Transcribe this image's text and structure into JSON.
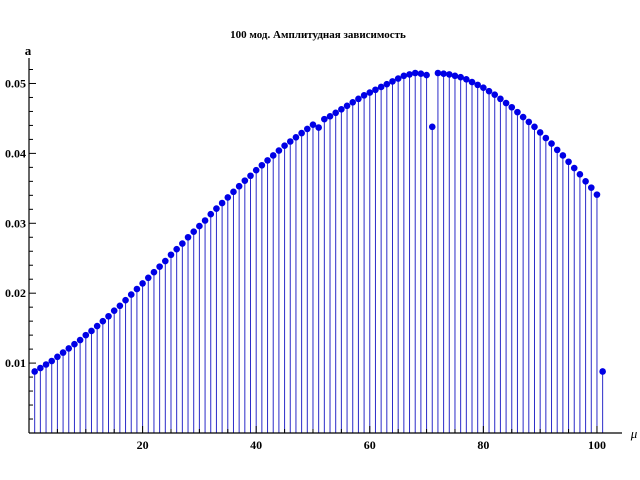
{
  "chart_data": {
    "type": "scatter",
    "style": "stem",
    "title": "100 мод. Амплитудная зависимость",
    "xlabel": "μ",
    "ylabel": "a",
    "xlim": [
      0,
      103
    ],
    "ylim": [
      0,
      0.0525
    ],
    "xticks": [
      20,
      40,
      60,
      80,
      100
    ],
    "xtick_labels": [
      "20",
      "40",
      "60",
      "80",
      "100"
    ],
    "yticks": [
      0.01,
      0.02,
      0.03,
      0.04,
      0.05
    ],
    "ytick_labels": [
      "0.01",
      "0.02",
      "0.03",
      "0.04",
      "0.05"
    ],
    "grid": false,
    "legend": "none",
    "colors": {
      "stem": "#2b2bc8",
      "point": "#0000e6",
      "axis": "#000000"
    },
    "series": [
      {
        "x": [
          1,
          2,
          3,
          4,
          5,
          6,
          7,
          8,
          9,
          10,
          11,
          12,
          13,
          14,
          15,
          16,
          17,
          18,
          19,
          20,
          21,
          22,
          23,
          24,
          25,
          26,
          27,
          28,
          29,
          30,
          31,
          32,
          33,
          34,
          35,
          36,
          37,
          38,
          39,
          40,
          41,
          42,
          43,
          44,
          45,
          46,
          47,
          48,
          49,
          50,
          51,
          52,
          53,
          54,
          55,
          56,
          57,
          58,
          59,
          60,
          61,
          62,
          63,
          64,
          65,
          66,
          67,
          68,
          69,
          70,
          71,
          72,
          73,
          74,
          75,
          76,
          77,
          78,
          79,
          80,
          81,
          82,
          83,
          84,
          85,
          86,
          87,
          88,
          89,
          90,
          91,
          92,
          93,
          94,
          95,
          96,
          97,
          98,
          99,
          100,
          101
        ],
        "y": [
          0.0088,
          0.0093,
          0.0098,
          0.0103,
          0.0109,
          0.0115,
          0.0121,
          0.0127,
          0.0133,
          0.014,
          0.0146,
          0.0153,
          0.016,
          0.0167,
          0.0175,
          0.0182,
          0.019,
          0.0198,
          0.0206,
          0.0214,
          0.0222,
          0.023,
          0.0238,
          0.0246,
          0.0255,
          0.0263,
          0.0271,
          0.028,
          0.0288,
          0.0296,
          0.0304,
          0.0313,
          0.0321,
          0.0329,
          0.0337,
          0.0345,
          0.0353,
          0.0361,
          0.0368,
          0.0376,
          0.0383,
          0.039,
          0.0397,
          0.0404,
          0.0411,
          0.0417,
          0.0423,
          0.0429,
          0.0435,
          0.0441,
          0.0437,
          0.0449,
          0.0453,
          0.0458,
          0.0463,
          0.0468,
          0.0473,
          0.0478,
          0.0483,
          0.0487,
          0.0491,
          0.0495,
          0.0499,
          0.0503,
          0.0507,
          0.0511,
          0.0513,
          0.0515,
          0.0514,
          0.0512,
          0.0438,
          0.0515,
          0.0514,
          0.0513,
          0.0511,
          0.0509,
          0.0506,
          0.0502,
          0.0498,
          0.0494,
          0.0489,
          0.0484,
          0.0478,
          0.0472,
          0.0466,
          0.0459,
          0.0452,
          0.0445,
          0.0438,
          0.043,
          0.0422,
          0.0414,
          0.0405,
          0.0397,
          0.0388,
          0.0379,
          0.037,
          0.036,
          0.0351,
          0.0341,
          0.0088
        ]
      }
    ]
  }
}
